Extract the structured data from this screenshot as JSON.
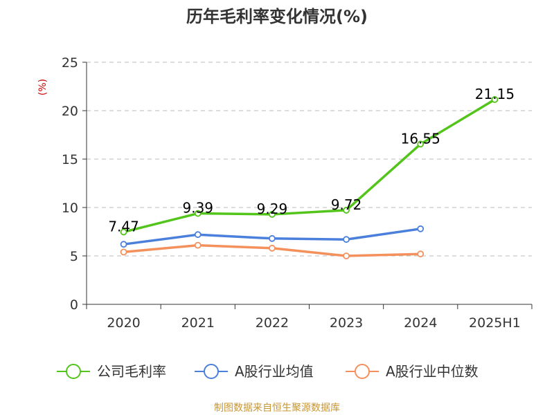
{
  "chart_data": {
    "type": "line",
    "title": "历年毛利率变化情况(%)",
    "ylabel": "(%)",
    "categories": [
      "2020",
      "2021",
      "2022",
      "2023",
      "2024",
      "2025H1"
    ],
    "ylim": [
      0,
      25
    ],
    "yticks": [
      "0",
      "5",
      "10",
      "15",
      "20",
      "25"
    ],
    "grid": true,
    "legend_position": "bottom",
    "series": [
      {
        "name": "公司毛利率",
        "color": "#52c41a",
        "values": [
          7.47,
          9.39,
          9.29,
          9.72,
          16.55,
          21.15
        ],
        "labels": [
          "7.47",
          "9.39",
          "9.29",
          "9.72",
          "16.55",
          "21.15"
        ]
      },
      {
        "name": "A股行业均值",
        "color": "#4a7fdb",
        "values": [
          6.2,
          7.2,
          6.8,
          6.7,
          7.8,
          null
        ]
      },
      {
        "name": "A股行业中位数",
        "color": "#f4905c",
        "values": [
          5.4,
          6.1,
          5.8,
          5.0,
          5.2,
          null
        ]
      }
    ]
  },
  "colors": {
    "axis": "#333333",
    "grid": "#bbbbbb",
    "ylabel": "#cc0000",
    "source": "#c89632"
  },
  "source": "制图数据来自恒生聚源数据库"
}
